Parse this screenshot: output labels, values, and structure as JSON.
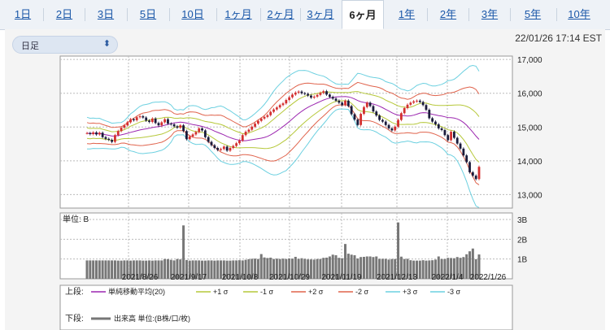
{
  "tabs": [
    {
      "label": "1日"
    },
    {
      "label": "2日"
    },
    {
      "label": "3日"
    },
    {
      "label": "5日"
    },
    {
      "label": "10日"
    },
    {
      "label": "1ヶ月"
    },
    {
      "label": "2ヶ月"
    },
    {
      "label": "3ヶ月"
    },
    {
      "label": "6ヶ月",
      "active": true
    },
    {
      "label": "1年"
    },
    {
      "label": "2年"
    },
    {
      "label": "3年"
    },
    {
      "label": "5年"
    },
    {
      "label": "10年"
    }
  ],
  "period_select": {
    "value": "日足"
  },
  "timestamp": "22/01/26 17:14 EST",
  "colors": {
    "up": "#d32f2f",
    "down": "#1a1a3a",
    "ma": "#9c27b0",
    "s1": "#b6c83a",
    "s2": "#e0634c",
    "s3": "#6cd0e0",
    "volume": "#777777",
    "accent": "#1a57a8"
  },
  "chart_data": [
    {
      "type": "candlestick",
      "ylim": [
        12600,
        17100
      ],
      "yticks": [
        "13,000",
        "14,000",
        "15,000",
        "16,000",
        "17,000"
      ],
      "ytick_values": [
        13000,
        14000,
        15000,
        16000,
        17000
      ],
      "xticks": [
        "2021/8/26",
        "2021/9/17",
        "2021/10/8",
        "2021/10/29",
        "2021/11/19",
        "2021/12/13",
        "2022/1/4",
        "2022/1/26"
      ],
      "close": [
        14820,
        14790,
        14840,
        14780,
        14830,
        14700,
        14650,
        14620,
        14560,
        14760,
        14880,
        14980,
        15050,
        15140,
        15230,
        15200,
        15290,
        15320,
        15280,
        15190,
        15150,
        15250,
        15120,
        15050,
        15140,
        15230,
        15100,
        15080,
        15020,
        14980,
        15050,
        14880,
        14640,
        14720,
        14780,
        14850,
        14960,
        14900,
        14700,
        14560,
        14460,
        14380,
        14320,
        14350,
        14420,
        14300,
        14380,
        14440,
        14520,
        14600,
        14760,
        14860,
        14920,
        15010,
        15100,
        15180,
        15250,
        15300,
        15350,
        15450,
        15520,
        15580,
        15650,
        15700,
        15800,
        15880,
        15960,
        16020,
        16050,
        16000,
        15980,
        15930,
        15870,
        15900,
        15950,
        16010,
        16060,
        15960,
        15890,
        15840,
        15780,
        15720,
        15650,
        15780,
        15620,
        15380,
        15220,
        15060,
        15390,
        15590,
        15720,
        15620,
        15460,
        15340,
        15210,
        15160,
        15060,
        14960,
        14900,
        15010,
        15210,
        15410,
        15560,
        15660,
        15720,
        15760,
        15780,
        15740,
        15650,
        15510,
        15260,
        15160,
        15080,
        14960,
        14910,
        14760,
        14610,
        14860,
        14680,
        14510,
        14360,
        14160,
        13960,
        13660,
        13560,
        13460,
        13820
      ]
    },
    {
      "type": "bar",
      "title": "単位: B",
      "ylim": [
        0,
        3
      ],
      "yticks": [
        "1B",
        "2B",
        "3B"
      ],
      "ytick_values": [
        1,
        2,
        3
      ],
      "values": [
        0.93,
        0.93,
        0.93,
        0.93,
        0.93,
        0.93,
        0.93,
        0.93,
        0.93,
        0.93,
        0.92,
        0.92,
        0.93,
        0.93,
        0.92,
        0.93,
        0.93,
        0.93,
        0.92,
        0.92,
        0.93,
        0.92,
        0.93,
        0.93,
        0.93,
        1.0,
        0.99,
        0.96,
        0.93,
        1.0,
        0.98,
        2.7,
        0.95,
        0.92,
        0.93,
        0.93,
        0.93,
        0.92,
        0.92,
        0.93,
        0.93,
        0.92,
        0.93,
        0.93,
        0.93,
        0.92,
        0.92,
        0.93,
        0.93,
        0.94,
        0.93,
        0.96,
        0.99,
        1.01,
        1.02,
        1.0,
        1.25,
        1.08,
        1.05,
        1.07,
        1.0,
        1.02,
        1.0,
        1.02,
        1.0,
        1.03,
        1.02,
        1.11,
        1.01,
        1.04,
        1.01,
        0.98,
        0.98,
        0.97,
        1.0,
        1.0,
        1.06,
        1.07,
        1.13,
        1.22,
        1.19,
        1.06,
        1.04,
        1.76,
        1.27,
        1.22,
        1.19,
        1.03,
        1.1,
        1.11,
        1.13,
        1.13,
        1.1,
        1.13,
        1.01,
        1.01,
        1.01,
        0.97,
        1.0,
        1.0,
        2.85,
        1.12,
        1.0,
        1.01,
        0.94,
        0.92,
        0.92,
        0.92,
        0.94,
        0.92,
        0.93,
        0.94,
        0.97,
        1.13,
        1.0,
        1.0,
        1.06,
        1.05,
        1.04,
        1.1,
        1.06,
        1.1,
        1.24,
        1.39,
        1.53,
        0.99,
        1.23
      ]
    }
  ],
  "legend": {
    "upper_label": "上段:",
    "lower_label": "下段:",
    "items": [
      "単純移動平均(20)",
      "+1 σ",
      "-1 σ",
      "+2 σ",
      "-2 σ",
      "+3 σ",
      "-3 σ"
    ],
    "volume_item": "出来高 単位:(B株/口/枚)"
  }
}
